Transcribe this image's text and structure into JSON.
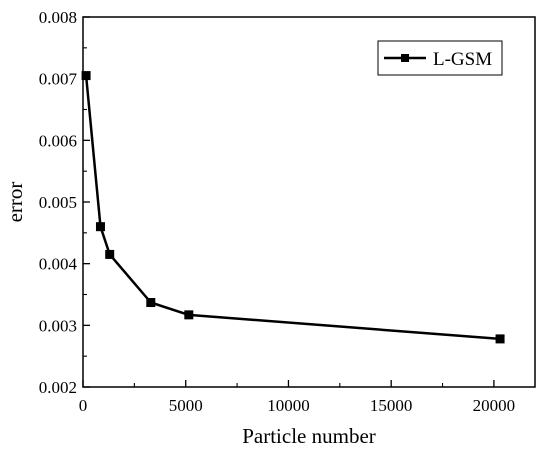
{
  "chart_data": {
    "type": "line",
    "title": "",
    "xlabel": "Particle number",
    "ylabel": "error",
    "xlim": [
      0,
      22000
    ],
    "ylim": [
      0.002,
      0.008
    ],
    "x_ticks": [
      0,
      5000,
      10000,
      15000,
      20000
    ],
    "x_tick_labels": [
      "0",
      "5000",
      "10000",
      "15000",
      "20000"
    ],
    "y_ticks": [
      0.002,
      0.003,
      0.004,
      0.005,
      0.006,
      0.007,
      0.008
    ],
    "y_tick_labels": [
      "0.002",
      "0.003",
      "0.004",
      "0.005",
      "0.006",
      "0.007",
      "0.008"
    ],
    "grid": false,
    "legend_position": "top-right",
    "series": [
      {
        "name": "L-GSM",
        "color": "#000000",
        "marker": "square",
        "x": [
          150,
          850,
          1300,
          3300,
          5150,
          20300
        ],
        "y": [
          0.00705,
          0.0046,
          0.00415,
          0.00337,
          0.00317,
          0.00278
        ]
      }
    ]
  }
}
